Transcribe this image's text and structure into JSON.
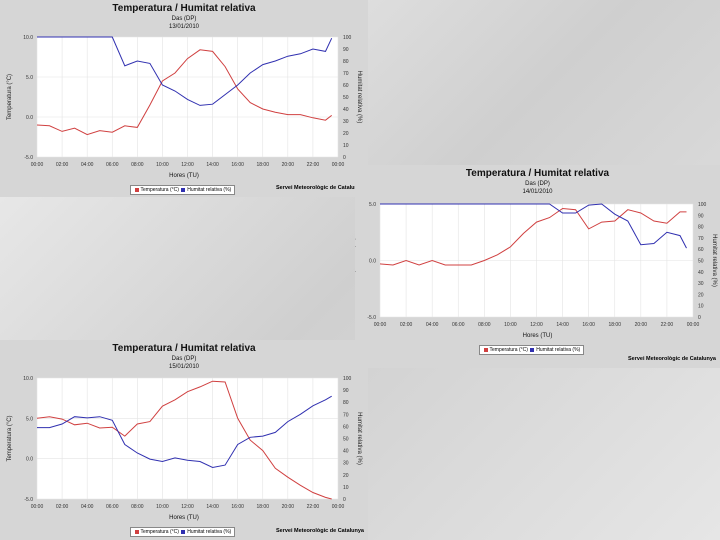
{
  "colors": {
    "temperature": "#d04040",
    "humidity": "#3030b0"
  },
  "chart_data": [
    {
      "type": "line",
      "title": "Temperatura / Humitat relativa",
      "subtitle": "Das (DP)",
      "date": "13/01/2010",
      "xlabel": "Hores (TU)",
      "ylabel": "Temperatura (°C)",
      "y2label": "Humitat relativa (%)",
      "xticks": [
        "00:00",
        "02:00",
        "04:00",
        "06:00",
        "08:00",
        "10:00",
        "12:00",
        "14:00",
        "16:00",
        "18:00",
        "20:00",
        "22:00",
        "00:00"
      ],
      "yticks": [
        "10.0",
        "5.0",
        "0.0",
        "-5.0"
      ],
      "ylim": [
        -5,
        10
      ],
      "y2ticks": [
        "0",
        "10",
        "20",
        "30",
        "40",
        "50",
        "60",
        "70",
        "80",
        "90",
        "100"
      ],
      "y2lim": [
        0,
        100
      ],
      "legend": [
        "Temperatura (°C)",
        "Humitat relativa (%)"
      ],
      "footer": "Servei Meteorològic de Catalunya",
      "grid": true,
      "x": [
        0,
        1,
        2,
        3,
        4,
        5,
        6,
        7,
        8,
        9,
        10,
        11,
        12,
        13,
        14,
        15,
        16,
        17,
        18,
        19,
        20,
        21,
        22,
        23,
        23.5
      ],
      "series": [
        {
          "name": "Temperatura (°C)",
          "axis": "left",
          "values": [
            -1,
            -1.1,
            -1.8,
            -1.4,
            -2.2,
            -1.7,
            -1.9,
            -1.1,
            -1.3,
            1.5,
            4.5,
            5.5,
            7.3,
            8.4,
            8.2,
            6.3,
            3.5,
            1.8,
            1.0,
            0.6,
            0.3,
            0.3,
            -0.1,
            -0.4,
            0.2
          ]
        },
        {
          "name": "Humitat relativa (%)",
          "axis": "right",
          "values": [
            100,
            100,
            100,
            100,
            100,
            100,
            100,
            76,
            80,
            78,
            60,
            55,
            48,
            43,
            44,
            52,
            60,
            70,
            77,
            80,
            84,
            86,
            90,
            88,
            99
          ]
        }
      ]
    },
    {
      "type": "line",
      "title": "Temperatura / Humitat relativa",
      "subtitle": "Das (DP)",
      "date": "14/01/2010",
      "xlabel": "Hores (TU)",
      "ylabel": "Temperatura (°C)",
      "y2label": "Humitat relativa (%)",
      "xticks": [
        "00:00",
        "02:00",
        "04:00",
        "06:00",
        "08:00",
        "10:00",
        "12:00",
        "14:00",
        "16:00",
        "18:00",
        "20:00",
        "22:00",
        "00:00"
      ],
      "yticks": [
        "5.0",
        "0.0",
        "-5.0"
      ],
      "ylim": [
        -5,
        5
      ],
      "y2ticks": [
        "0",
        "10",
        "20",
        "30",
        "40",
        "50",
        "60",
        "70",
        "80",
        "90",
        "100"
      ],
      "y2lim": [
        0,
        100
      ],
      "legend": [
        "Temperatura (°C)",
        "Humitat relativa (%)"
      ],
      "footer": "Servei Meteorològic de Catalunya",
      "grid": true,
      "x": [
        0,
        1,
        2,
        3,
        4,
        5,
        6,
        7,
        8,
        9,
        10,
        11,
        12,
        13,
        14,
        15,
        16,
        17,
        18,
        19,
        20,
        21,
        22,
        23,
        23.5
      ],
      "series": [
        {
          "name": "Temperatura (°C)",
          "axis": "left",
          "values": [
            -0.3,
            -0.4,
            0,
            -0.4,
            0,
            -0.4,
            -0.4,
            -0.4,
            0,
            0.5,
            1.2,
            2.4,
            3.4,
            3.8,
            4.6,
            4.5,
            2.8,
            3.4,
            3.5,
            4.5,
            4.2,
            3.5,
            3.3,
            4.3,
            4.3
          ]
        },
        {
          "name": "Humitat relativa (%)",
          "axis": "right",
          "values": [
            100,
            100,
            100,
            100,
            100,
            100,
            100,
            100,
            100,
            100,
            100,
            100,
            100,
            100,
            92,
            92,
            99,
            100,
            91,
            85,
            64,
            65,
            75,
            72,
            61
          ]
        }
      ]
    },
    {
      "type": "line",
      "title": "Temperatura / Humitat relativa",
      "subtitle": "Das (DP)",
      "date": "15/01/2010",
      "xlabel": "Hores (TU)",
      "ylabel": "Temperatura (°C)",
      "y2label": "Humitat relativa (%)",
      "xticks": [
        "00:00",
        "02:00",
        "04:00",
        "06:00",
        "08:00",
        "10:00",
        "12:00",
        "14:00",
        "16:00",
        "18:00",
        "20:00",
        "22:00",
        "00:00"
      ],
      "yticks": [
        "10.0",
        "5.0",
        "0.0",
        "-5.0"
      ],
      "ylim": [
        -5,
        10
      ],
      "y2ticks": [
        "0",
        "10",
        "20",
        "30",
        "40",
        "50",
        "60",
        "70",
        "80",
        "90",
        "100"
      ],
      "y2lim": [
        0,
        100
      ],
      "legend": [
        "Temperatura (°C)",
        "Humitat relativa (%)"
      ],
      "footer": "Servei Meteorològic de Catalunya",
      "grid": true,
      "x": [
        0,
        1,
        2,
        3,
        4,
        5,
        6,
        7,
        8,
        9,
        10,
        11,
        12,
        13,
        14,
        15,
        16,
        17,
        18,
        19,
        20,
        21,
        22,
        23,
        23.5
      ],
      "series": [
        {
          "name": "Temperatura (°C)",
          "axis": "left",
          "values": [
            5,
            5.2,
            4.9,
            4.2,
            4.4,
            3.8,
            3.9,
            2.8,
            4.3,
            4.6,
            6.5,
            7.3,
            8.3,
            8.9,
            9.6,
            9.5,
            5,
            2.3,
            1,
            -1.2,
            -2.3,
            -3.3,
            -4.2,
            -4.8,
            -5
          ]
        },
        {
          "name": "Humitat relativa (%)",
          "axis": "right",
          "values": [
            59,
            59,
            62,
            68,
            67,
            68,
            65,
            45,
            38,
            33,
            31,
            34,
            32,
            31,
            26,
            28,
            45,
            51,
            52,
            55,
            64,
            70,
            77,
            82,
            85
          ]
        }
      ]
    }
  ]
}
